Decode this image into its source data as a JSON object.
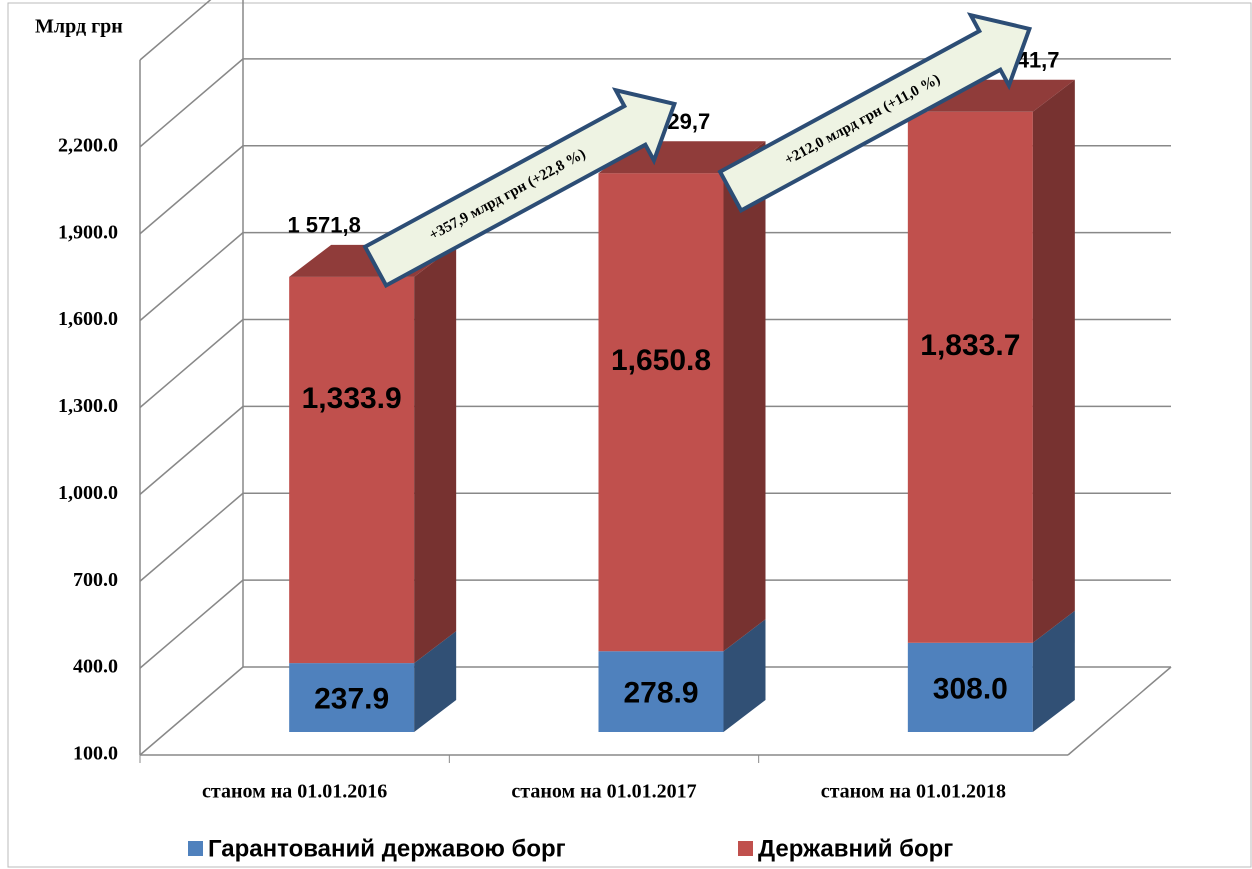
{
  "chart_data": {
    "type": "bar3d_stacked",
    "y_axis_label": "Млрд грн",
    "categories": [
      "станом на 01.01.2016",
      "станом на 01.01.2017",
      "станом на 01.01.2018"
    ],
    "series": [
      {
        "name": "Гарантований державою борг",
        "color": "#4f81bd",
        "values": [
          237.9,
          278.9,
          308.0
        ],
        "value_labels": [
          "237.9",
          "278.9",
          "308.0"
        ]
      },
      {
        "name": "Державний борг",
        "color": "#c0504d",
        "values": [
          1333.9,
          1650.8,
          1833.7
        ],
        "value_labels": [
          "1,333.9",
          "1,650.8",
          "1,833.7"
        ]
      }
    ],
    "total_labels": [
      "1 571,8",
      "1 929,7",
      "2 141,7"
    ],
    "annotations": [
      "+357,9 млрд грн (+22,8 %)",
      "+212,0 млрд грн (+11,0 %)"
    ],
    "ylim": [
      100,
      2500
    ],
    "yticks": [
      {
        "value": 100,
        "label": "100.0"
      },
      {
        "value": 400,
        "label": "400.0"
      },
      {
        "value": 700,
        "label": "700.0"
      },
      {
        "value": 1000,
        "label": "1,000.0"
      },
      {
        "value": 1300,
        "label": "1,300.0"
      },
      {
        "value": 1600,
        "label": "1,600.0"
      },
      {
        "value": 1900,
        "label": "1,900.0"
      },
      {
        "value": 2200,
        "label": "2,200.0"
      }
    ],
    "grid": true,
    "legend": "bottom"
  }
}
